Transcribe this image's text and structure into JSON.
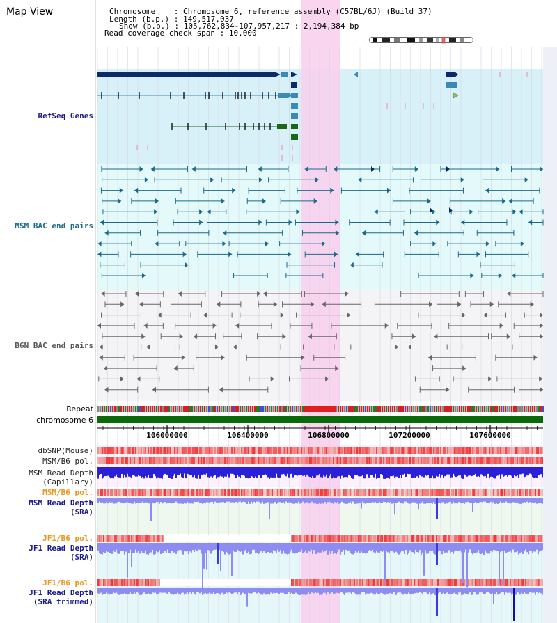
{
  "view": {
    "title": "Map View"
  },
  "info": {
    "chromosome_label": "Chromosome",
    "chromosome_value": "Chromosome 6, reference assembly (C57BL/6J) (Build 37)",
    "length_label": "Length (b.p.)",
    "length_value": "149,517,037",
    "show_label": "Show (b.p.)",
    "show_value": "105,762,834-107,957,217 : 2,194,384 bp",
    "coverage_label": "Read coverage check span",
    "coverage_value": "10,000"
  },
  "tracks": {
    "refseq": "RefSeq Genes",
    "msm_bac": "MSM BAC end pairs",
    "b6n_bac": "B6N BAC end pairs",
    "repeat": "Repeat",
    "chromosome": "chromosome 6",
    "dbsnp": "dbSNP(Mouse)",
    "msm_b6_pol": "MSM/B6 pol.",
    "msm_depth_cap_1": "MSM Read Depth",
    "msm_depth_cap_2": "(Capillary)",
    "msm_b6_pol_2": "MSM/B6 pol.",
    "msm_depth_sra_1": "MSM Read Depth",
    "msm_depth_sra_2": "(SRA)",
    "jf1_b6_pol": "JF1/B6 pol.",
    "jf1_depth_sra_1": "JF1 Read Depth",
    "jf1_depth_sra_2": "(SRA)",
    "jf1_b6_pol_2": "JF1/B6 pol.",
    "jf1_depth_trim_1": "JF1 Read Depth",
    "jf1_depth_trim_2": "(SRA trimmed)"
  },
  "axis": {
    "ticks": [
      "106000000",
      "106400000",
      "106800000",
      "107200000",
      "107600000"
    ]
  },
  "colors": {
    "refseq_bg": "#d8f0f8",
    "bac_bg": "#e4fafa",
    "gray_bg": "#f4f4f6",
    "highlight": "#f8d0ee",
    "navy": "#0a2a6a",
    "steel": "#3a8ab8",
    "green": "#186818",
    "teal": "#1a6a8a",
    "dark_gray": "#666666",
    "depth_blue": "#2a20d8",
    "depth_light": "#8e8cf0",
    "pol_red": "#f04848",
    "label_navy": "#1a1a8c",
    "label_teal": "#1a6a8a",
    "label_orange": "#e8961e"
  }
}
